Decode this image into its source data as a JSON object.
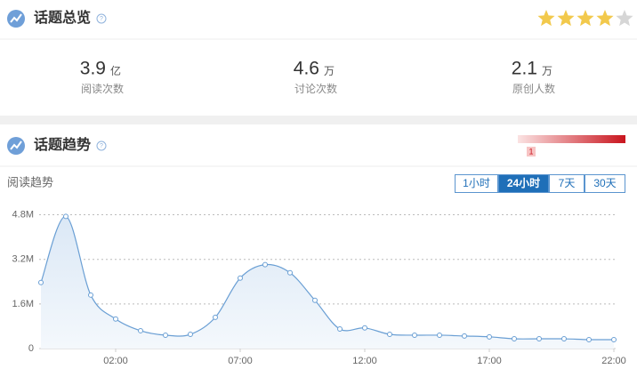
{
  "overview": {
    "title": "话题总览",
    "rating": 4,
    "rating_max": 5,
    "stats": [
      {
        "value": 3.9,
        "unit": "亿",
        "label": "阅读次数"
      },
      {
        "value": 4.6,
        "unit": "万",
        "label": "讨论次数"
      },
      {
        "value": 2.1,
        "unit": "万",
        "label": "原创人数"
      }
    ]
  },
  "trend": {
    "title": "话题趋势",
    "heat_marker": "1",
    "subtitle": "阅读趋势",
    "tabs": [
      "1小时",
      "24小时",
      "7天",
      "30天"
    ],
    "active_tab": 1,
    "chart_data": {
      "type": "line",
      "color": "#6a9fd4",
      "categories": [
        null,
        null,
        null,
        "02:00",
        null,
        null,
        null,
        null,
        "07:00",
        null,
        null,
        null,
        null,
        "12:00",
        null,
        null,
        null,
        null,
        "17:00",
        null,
        null,
        null,
        null,
        "22:00"
      ],
      "values": [
        2370000,
        4740000,
        1920000,
        1060000,
        640000,
        480000,
        510000,
        1120000,
        2530000,
        3010000,
        2720000,
        1730000,
        700000,
        740000,
        510000,
        480000,
        480000,
        450000,
        420000,
        350000,
        350000,
        350000,
        320000,
        320000
      ],
      "ylim": [
        0,
        5200000
      ],
      "yticks": [
        0,
        {
          "value": 1600000,
          "label": "1.6M"
        },
        {
          "value": 3200000,
          "label": "3.2M"
        },
        {
          "value": 4800000,
          "label": "4.8M"
        }
      ],
      "grid": true
    }
  }
}
